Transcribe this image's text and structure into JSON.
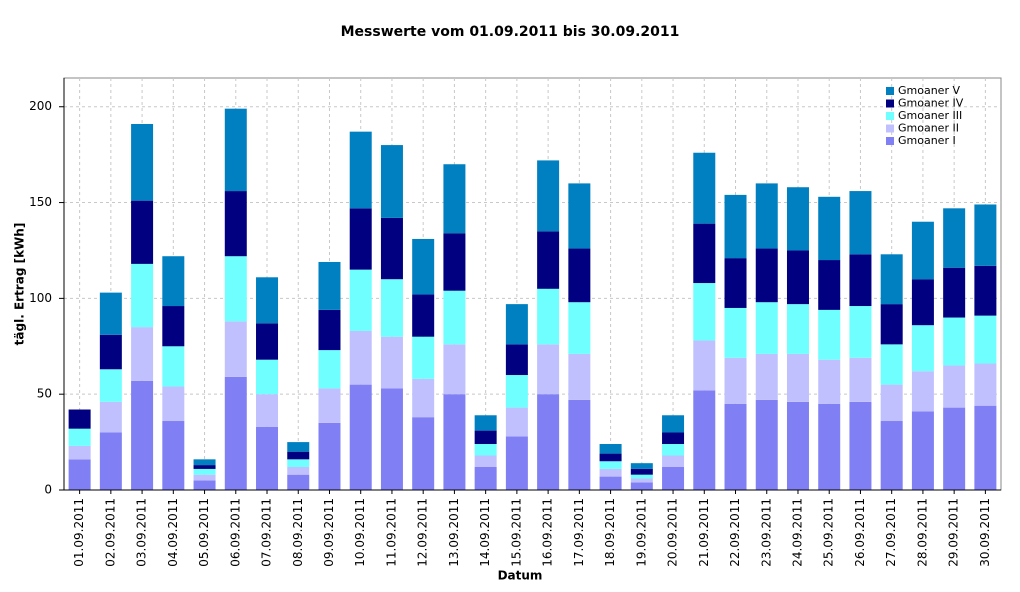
{
  "chart_data": {
    "type": "stacked_bar",
    "title": "Messwerte vom 01.09.2011 bis 30.09.2011",
    "x_label": "Datum",
    "y_label": "tägl. Ertrag [kWh]",
    "categories": [
      "01.09.2011",
      "02.09.2011",
      "03.09.2011",
      "04.09.2011",
      "05.09.2011",
      "06.09.2011",
      "07.09.2011",
      "08.09.2011",
      "09.09.2011",
      "10.09.2011",
      "11.09.2011",
      "12.09.2011",
      "13.09.2011",
      "14.09.2011",
      "15.09.2011",
      "16.09.2011",
      "17.09.2011",
      "18.09.2011",
      "19.09.2011",
      "20.09.2011",
      "21.09.2011",
      "22.09.2011",
      "23.09.2011",
      "24.09.2011",
      "25.09.2011",
      "26.09.2011",
      "27.09.2011",
      "28.09.2011",
      "29.09.2011",
      "30.09.2011"
    ],
    "series": [
      {
        "name": "Gmoaner I",
        "color": "#8080f4",
        "values": [
          16,
          30,
          57,
          36,
          5,
          59,
          33,
          8,
          35,
          55,
          53,
          38,
          50,
          12,
          28,
          50,
          47,
          7,
          4,
          12,
          52,
          45,
          47,
          46,
          45,
          46,
          36,
          41,
          43,
          44
        ]
      },
      {
        "name": "Gmoaner II",
        "color": "#c0c0ff",
        "values": [
          7,
          16,
          28,
          18,
          3,
          29,
          17,
          4,
          18,
          28,
          27,
          20,
          26,
          6,
          15,
          26,
          24,
          4,
          2,
          6,
          26,
          24,
          24,
          25,
          23,
          23,
          19,
          21,
          22,
          22
        ]
      },
      {
        "name": "Gmoaner III",
        "color": "#70ffff",
        "values": [
          9,
          17,
          33,
          21,
          3,
          34,
          18,
          4,
          20,
          32,
          30,
          22,
          28,
          6,
          17,
          29,
          27,
          4,
          2,
          6,
          30,
          26,
          27,
          26,
          26,
          27,
          21,
          24,
          25,
          25
        ]
      },
      {
        "name": "Gmoaner IV",
        "color": "#000080",
        "values": [
          10,
          18,
          33,
          21,
          2,
          34,
          19,
          4,
          21,
          32,
          32,
          22,
          30,
          7,
          16,
          30,
          28,
          4,
          3,
          6,
          31,
          26,
          28,
          28,
          26,
          27,
          21,
          24,
          26,
          26
        ]
      },
      {
        "name": "Gmoaner V",
        "color": "#0080c0",
        "values": [
          0,
          22,
          40,
          26,
          3,
          43,
          24,
          5,
          25,
          40,
          38,
          29,
          36,
          8,
          21,
          37,
          34,
          5,
          3,
          9,
          37,
          33,
          34,
          33,
          33,
          33,
          26,
          30,
          31,
          32
        ]
      }
    ],
    "ylim": [
      0,
      215
    ],
    "yticks": [
      0,
      50,
      100,
      150,
      200
    ],
    "grid": true,
    "legend": "upper right"
  }
}
